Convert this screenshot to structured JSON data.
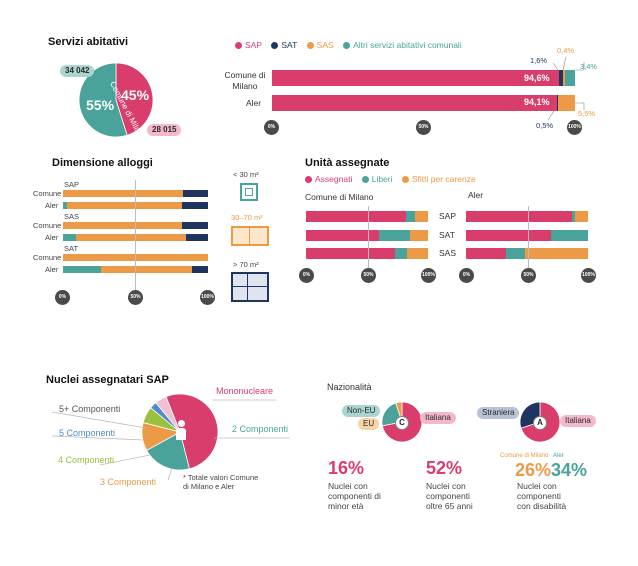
{
  "colors": {
    "sap": "#d93d6c",
    "sat": "#1f3560",
    "sas": "#ec9a46",
    "altri": "#4aa39a",
    "pink_light": "#f4b8cb",
    "teal_light": "#a9d4cf",
    "navy_light": "#b8c2d6",
    "orange_light": "#f7d3a8"
  },
  "servizi": {
    "title": "Servizi abitativi",
    "legend": [
      "SAP",
      "SAT",
      "SAS",
      "Altri servizi abitativi comunali"
    ],
    "pie_pct_aler": "55%",
    "pie_pct_comune": "45%",
    "pie_label_aler": "Aler",
    "pie_label_comune": "Comune di Milano",
    "count_aler": "34 042",
    "count_comune": "28 015",
    "row_labels": [
      "Comune di Milano",
      "Aler"
    ],
    "comune_sap_label": "94,6%",
    "aler_sap_label": "94,1%",
    "callouts": {
      "c_sat": "1,6%",
      "c_sas": "0,4%",
      "c_altri": "3,4%",
      "a_sas": "5,5%",
      "a_sat": "0,5%"
    },
    "ticks": [
      "0%",
      "50%",
      "100%"
    ]
  },
  "dimensione": {
    "title": "Dimensione alloggi",
    "groups": [
      "SAP",
      "SAS",
      "SAT"
    ],
    "row_labels": [
      "Comune",
      "Aler"
    ],
    "size_labels": [
      "< 30 m²",
      "30–70 m²",
      "> 70 m²"
    ],
    "ticks": [
      "0%",
      "50%",
      "100%"
    ]
  },
  "unita": {
    "title": "Unità assegnate",
    "legend": [
      "Assegnati",
      "Liberi",
      "Sfitti per carenze"
    ],
    "panel_titles": [
      "Comune di Milano",
      "Aler"
    ],
    "row_labels": [
      "SAP",
      "SAT",
      "SAS"
    ],
    "ticks": [
      "0%",
      "50%",
      "100%"
    ]
  },
  "nuclei": {
    "title": "Nuclei assegnatari SAP",
    "labels": [
      "Mononucleare",
      "2 Componenti",
      "3 Componenti",
      "4 Componenti",
      "5 Componenti",
      "5+ Componenti"
    ],
    "note": "* Totale valori Comune di Milano e Aler"
  },
  "nazionalita": {
    "title": "Nazionalità",
    "c_labels": [
      "Non-EU",
      "EU",
      "Italiana"
    ],
    "a_labels": [
      "Straniera",
      "Italiana"
    ],
    "c_letter": "C",
    "a_letter": "A"
  },
  "stats": [
    {
      "value": "16%",
      "text": [
        "Nuclei con",
        "componenti di",
        "minor età"
      ]
    },
    {
      "value": "52%",
      "text": [
        "Nuclei con",
        "componenti",
        "oltre 65 anni"
      ]
    },
    {
      "value": "",
      "text": [
        "Nuclei con",
        "componenti",
        "con disabilità"
      ]
    }
  ],
  "disab": {
    "comune_label": "Comune di Milano",
    "aler_label": "Aler",
    "comune_value": "26%",
    "aler_value": "34%"
  },
  "chart_data": [
    {
      "type": "pie",
      "title": "Servizi abitativi",
      "categories": [
        "Aler",
        "Comune di Milano"
      ],
      "values": [
        34042,
        28015
      ]
    },
    {
      "type": "bar",
      "categories": [
        "Comune di Milano",
        "Aler"
      ],
      "series": [
        {
          "name": "SAP",
          "values": [
            94.6,
            94.1
          ]
        },
        {
          "name": "SAT",
          "values": [
            1.6,
            0.5
          ]
        },
        {
          "name": "SAS",
          "values": [
            0.4,
            5.5
          ]
        },
        {
          "name": "Altri servizi abitativi comunali",
          "values": [
            3.4,
            0
          ]
        }
      ]
    },
    {
      "type": "bar",
      "title": "Dimensione alloggi",
      "categories": [
        "SAP Comune",
        "SAP Aler",
        "SAS Comune",
        "SAS Aler",
        "SAT Comune",
        "SAT Aler"
      ],
      "series": [
        {
          "name": "< 30 m²",
          "values": [
            0,
            3,
            0,
            9,
            0,
            26
          ]
        },
        {
          "name": "30–70 m²",
          "values": [
            83,
            79,
            82,
            76,
            100,
            63
          ]
        },
        {
          "name": "> 70 m²",
          "values": [
            17,
            18,
            18,
            15,
            0,
            11
          ]
        }
      ]
    },
    {
      "type": "bar",
      "title": "Unità assegnate — Comune di Milano",
      "categories": [
        "SAP",
        "SAT",
        "SAS"
      ],
      "series": [
        {
          "name": "Assegnati",
          "values": [
            82,
            60,
            73
          ]
        },
        {
          "name": "Liberi",
          "values": [
            7,
            25,
            10
          ]
        },
        {
          "name": "Sfitti per carenze",
          "values": [
            11,
            15,
            17
          ]
        }
      ]
    },
    {
      "type": "bar",
      "title": "Unità assegnate — Aler",
      "categories": [
        "SAP",
        "SAT",
        "SAS"
      ],
      "series": [
        {
          "name": "Assegnati",
          "values": [
            87,
            70,
            33
          ]
        },
        {
          "name": "Liberi",
          "values": [
            2,
            30,
            15
          ]
        },
        {
          "name": "Sfitti per carenze",
          "values": [
            11,
            0,
            52
          ]
        }
      ]
    },
    {
      "type": "pie",
      "title": "Nuclei assegnatari SAP",
      "categories": [
        "Mononucleare",
        "2 Componenti",
        "3 Componenti",
        "4 Componenti",
        "5 Componenti",
        "5+ Componenti"
      ],
      "values": [
        52,
        21,
        12,
        7,
        3,
        5
      ]
    },
    {
      "type": "pie",
      "title": "Nazionalità Comune di Milano",
      "categories": [
        "Italiana",
        "Non-EU",
        "EU"
      ],
      "values": [
        72,
        23,
        5
      ]
    },
    {
      "type": "pie",
      "title": "Nazionalità Aler",
      "categories": [
        "Italiana",
        "Straniera"
      ],
      "values": [
        70,
        30
      ]
    }
  ]
}
